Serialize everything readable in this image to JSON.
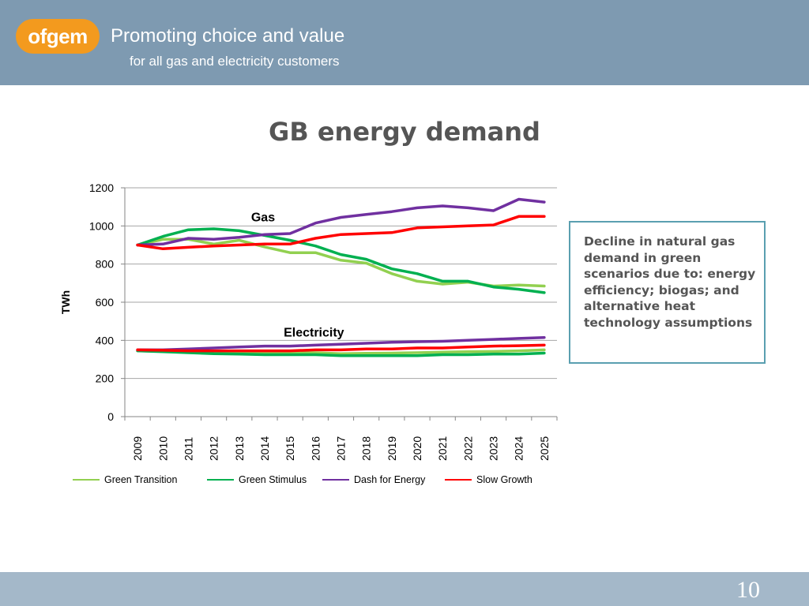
{
  "header": {
    "logo_text": "ofgem",
    "tagline_line1": "Promoting choice and value",
    "tagline_line2": "for all gas and electricity customers",
    "background_color": "#7e9ab1",
    "logo_color": "#f39a1e"
  },
  "slide": {
    "title": "GB energy demand",
    "page_number": "10"
  },
  "callout": {
    "text": "Decline in natural gas demand in green scenarios due to: energy efficiency; biogas; and alternative heat technology assumptions"
  },
  "chart_data": {
    "type": "line",
    "title": "",
    "xlabel": "",
    "ylabel": "TWh",
    "ylim": [
      0,
      1200
    ],
    "yticks": [
      0,
      200,
      400,
      600,
      800,
      1000,
      1200
    ],
    "grid": true,
    "legend_position": "bottom",
    "x": [
      "2009",
      "2010",
      "2011",
      "2012",
      "2013",
      "2014",
      "2015",
      "2016",
      "2017",
      "2018",
      "2019",
      "2020",
      "2021",
      "2022",
      "2023",
      "2024",
      "2025"
    ],
    "annotations": [
      {
        "text": "Gas",
        "x": "2014",
        "y": 1045
      },
      {
        "text": "Electricity",
        "x": "2016",
        "y": 440
      }
    ],
    "legend": [
      {
        "name": "Green Transition",
        "color": "#92d050"
      },
      {
        "name": "Green Stimulus",
        "color": "#00b050"
      },
      {
        "name": "Dash for Energy",
        "color": "#7030a0"
      },
      {
        "name": "Slow Growth",
        "color": "#ff0000"
      }
    ],
    "series": [
      {
        "name": "Green Transition",
        "group": "Gas",
        "color": "#92d050",
        "values": [
          900,
          930,
          930,
          905,
          925,
          890,
          860,
          860,
          820,
          805,
          750,
          710,
          695,
          705,
          685,
          690,
          685
        ]
      },
      {
        "name": "Green Stimulus",
        "group": "Gas",
        "color": "#00b050",
        "values": [
          900,
          945,
          980,
          985,
          975,
          950,
          925,
          895,
          850,
          825,
          775,
          750,
          710,
          710,
          680,
          668,
          650
        ]
      },
      {
        "name": "Dash for Energy",
        "group": "Gas",
        "color": "#7030a0",
        "values": [
          900,
          905,
          935,
          930,
          940,
          955,
          960,
          1015,
          1045,
          1060,
          1075,
          1095,
          1105,
          1095,
          1080,
          1140,
          1125
        ]
      },
      {
        "name": "Slow Growth",
        "group": "Gas",
        "color": "#ff0000",
        "values": [
          900,
          880,
          888,
          895,
          900,
          905,
          905,
          935,
          955,
          960,
          965,
          990,
          995,
          1000,
          1005,
          1050,
          1050
        ]
      },
      {
        "name": "Green Transition",
        "group": "Electricity",
        "color": "#92d050",
        "values": [
          345,
          342,
          338,
          335,
          335,
          335,
          335,
          335,
          330,
          332,
          333,
          335,
          338,
          340,
          342,
          345,
          350
        ]
      },
      {
        "name": "Green Stimulus",
        "group": "Electricity",
        "color": "#00b050",
        "values": [
          345,
          340,
          335,
          330,
          328,
          325,
          325,
          325,
          320,
          320,
          320,
          320,
          325,
          325,
          328,
          328,
          333
        ]
      },
      {
        "name": "Dash for Energy",
        "group": "Electricity",
        "color": "#7030a0",
        "values": [
          350,
          350,
          355,
          360,
          365,
          370,
          370,
          375,
          380,
          385,
          390,
          393,
          395,
          400,
          405,
          410,
          415
        ]
      },
      {
        "name": "Slow Growth",
        "group": "Electricity",
        "color": "#ff0000",
        "values": [
          350,
          348,
          345,
          345,
          345,
          345,
          345,
          350,
          350,
          355,
          355,
          360,
          360,
          365,
          370,
          372,
          375
        ]
      }
    ]
  }
}
